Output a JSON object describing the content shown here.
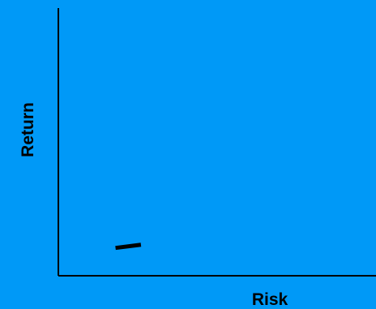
{
  "chart_data": {
    "type": "line",
    "xlabel": "Risk",
    "ylabel": "Return",
    "title": "",
    "grid": false,
    "legend": "none",
    "series": [
      {
        "points": [
          {
            "x": 0.9,
            "y": 0.52
          },
          {
            "x": 1.3,
            "y": 0.58
          }
        ]
      }
    ],
    "xlim": [
      0,
      5
    ],
    "ylim": [
      0,
      5
    ]
  },
  "colors": {
    "background": "#0099f7",
    "axis": "#000000",
    "mark": "#000000"
  }
}
